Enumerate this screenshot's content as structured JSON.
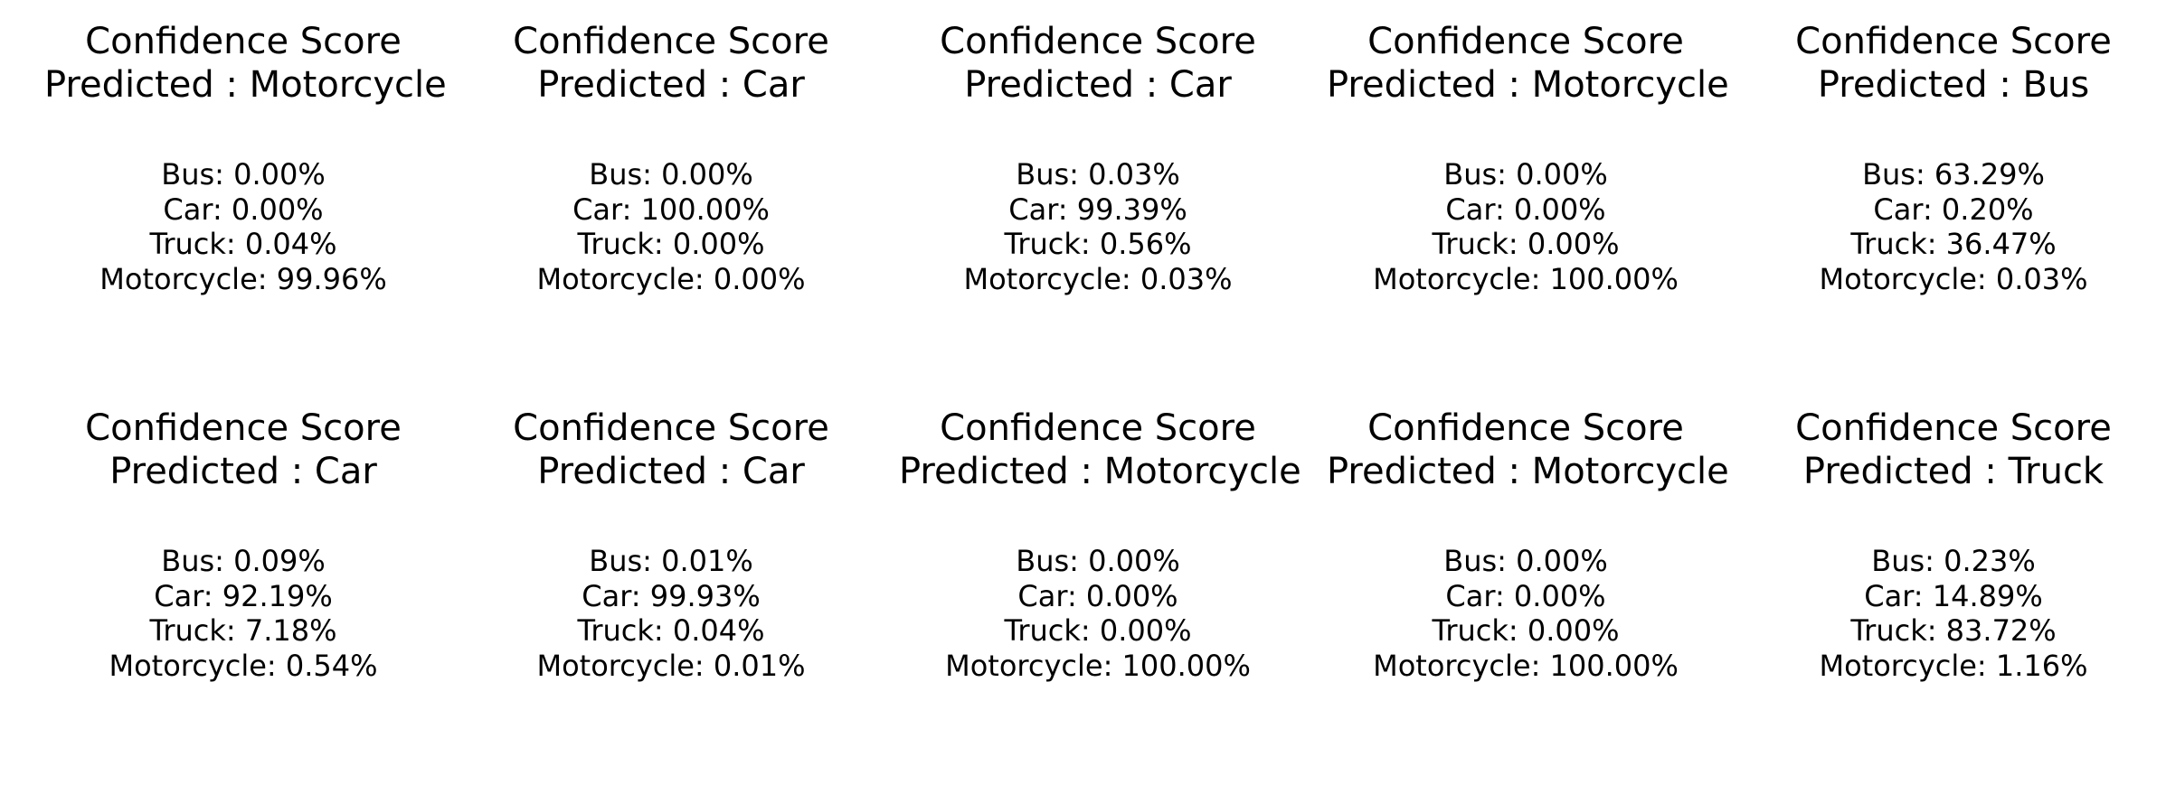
{
  "panels": [
    {
      "title": "Confidence Score",
      "predicted": "Predicted : Motorcycle",
      "scores": [
        "Bus: 0.00%",
        "Car: 0.00%",
        "Truck: 0.04%",
        "Motorcycle: 99.96%"
      ]
    },
    {
      "title": "Confidence Score",
      "predicted": "Predicted : Car",
      "scores": [
        "Bus: 0.00%",
        "Car: 100.00%",
        "Truck: 0.00%",
        "Motorcycle: 0.00%"
      ]
    },
    {
      "title": "Confidence Score",
      "predicted": "Predicted : Car",
      "scores": [
        "Bus: 0.03%",
        "Car: 99.39%",
        "Truck: 0.56%",
        "Motorcycle: 0.03%"
      ]
    },
    {
      "title": "Confidence Score",
      "predicted": "Predicted : Motorcycle",
      "scores": [
        "Bus: 0.00%",
        "Car: 0.00%",
        "Truck: 0.00%",
        "Motorcycle: 100.00%"
      ]
    },
    {
      "title": "Confidence Score",
      "predicted": "Predicted : Bus",
      "scores": [
        "Bus: 63.29%",
        "Car: 0.20%",
        "Truck: 36.47%",
        "Motorcycle: 0.03%"
      ]
    },
    {
      "title": "Confidence Score",
      "predicted": "Predicted : Car",
      "scores": [
        "Bus: 0.09%",
        "Car: 92.19%",
        "Truck: 7.18%",
        "Motorcycle: 0.54%"
      ]
    },
    {
      "title": "Confidence Score",
      "predicted": "Predicted : Car",
      "scores": [
        "Bus: 0.01%",
        "Car: 99.93%",
        "Truck: 0.04%",
        "Motorcycle: 0.01%"
      ]
    },
    {
      "title": "Confidence Score",
      "predicted": "Predicted : Motorcycle",
      "scores": [
        "Bus: 0.00%",
        "Car: 0.00%",
        "Truck: 0.00%",
        "Motorcycle: 100.00%"
      ]
    },
    {
      "title": "Confidence Score",
      "predicted": "Predicted : Motorcycle",
      "scores": [
        "Bus: 0.00%",
        "Car: 0.00%",
        "Truck: 0.00%",
        "Motorcycle: 100.00%"
      ]
    },
    {
      "title": "Confidence Score",
      "predicted": "Predicted : Truck",
      "scores": [
        "Bus: 0.23%",
        "Car: 14.89%",
        "Truck: 83.72%",
        "Motorcycle: 1.16%"
      ]
    }
  ]
}
